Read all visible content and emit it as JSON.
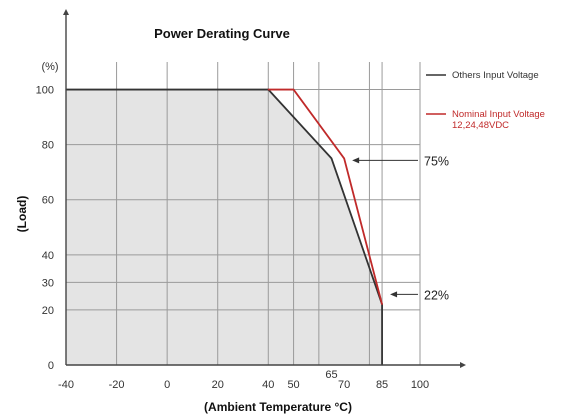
{
  "chart_data": {
    "type": "line",
    "title": "Power Derating Curve",
    "ylabel": "(Load)",
    "yunit": "(%)",
    "xlabel": "(Ambient Temperature °C)",
    "xlim": [
      -40,
      100
    ],
    "ylim": [
      0,
      110
    ],
    "x_ticks": [
      -40,
      -20,
      0,
      20,
      40,
      50,
      65,
      70,
      85,
      100
    ],
    "y_ticks": [
      0,
      20,
      30,
      40,
      60,
      80,
      100
    ],
    "x_gridlines": [
      -40,
      -20,
      0,
      20,
      40,
      50,
      60,
      80,
      85,
      100
    ],
    "y_gridlines": [
      20,
      30,
      40,
      60,
      80,
      100
    ],
    "grid": true,
    "legend_position": "right",
    "series": [
      {
        "name": "Others Input Voltage",
        "color": "#333333",
        "x": [
          -40,
          40,
          65,
          85,
          85
        ],
        "y": [
          100,
          100,
          75,
          22,
          0
        ]
      },
      {
        "name": "Nominal Input Voltage 12,24,48VDC",
        "color": "#c02a2a",
        "x": [
          40,
          50,
          70,
          85
        ],
        "y": [
          100,
          100,
          75,
          22
        ]
      }
    ],
    "annotations": [
      {
        "text": "75%",
        "x": 70,
        "y": 75
      },
      {
        "text": "22%",
        "x": 85,
        "y": 22
      }
    ]
  }
}
